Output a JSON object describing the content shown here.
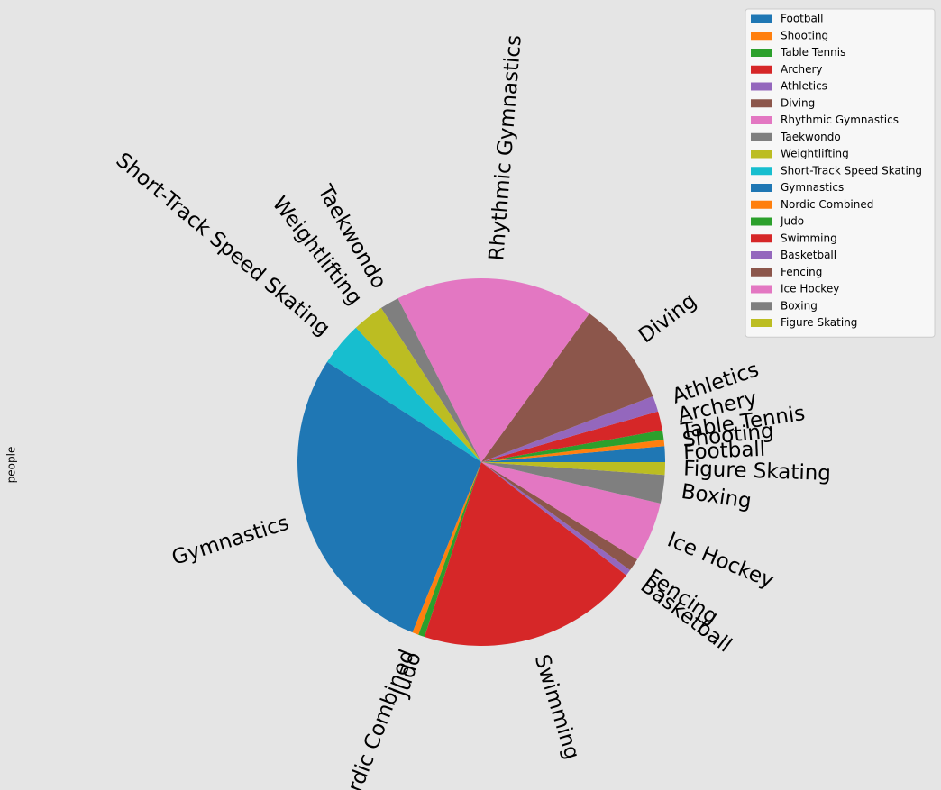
{
  "chart_data": {
    "type": "pie",
    "ylabel": "people",
    "legend": "upper right",
    "categories": [
      "Football",
      "Shooting",
      "Table Tennis",
      "Archery",
      "Athletics",
      "Diving",
      "Rhythmic Gymnastics",
      "Taekwondo",
      "Weightlifting",
      "Short-Track Speed Skating",
      "Gymnastics",
      "Nordic Combined",
      "Judo",
      "Swimming",
      "Basketball",
      "Fencing",
      "Ice Hockey",
      "Boxing",
      "Figure Skating"
    ],
    "values": [
      5,
      2,
      3,
      6,
      5,
      33,
      63,
      6,
      10,
      14,
      101,
      2,
      2,
      70,
      2,
      4,
      19,
      9,
      4
    ],
    "colors": [
      "#1f77b4",
      "#ff7f0e",
      "#2ca02c",
      "#d62728",
      "#9467bd",
      "#8c564b",
      "#e377c2",
      "#7f7f7f",
      "#bcbd22",
      "#17becf",
      "#1f77b4",
      "#ff7f0e",
      "#2ca02c",
      "#d62728",
      "#9467bd",
      "#8c564b",
      "#e377c2",
      "#7f7f7f",
      "#bcbd22"
    ]
  }
}
